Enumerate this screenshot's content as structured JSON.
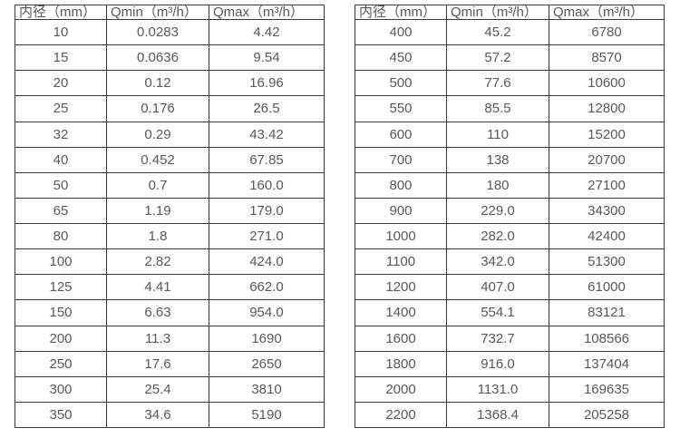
{
  "colors": {
    "background": "#ffffff",
    "table_border": "#3b3b3b",
    "text": "#595959"
  },
  "tables": [
    {
      "id": "diameter-flow-table-left",
      "headers": [
        "内径（mm）",
        "Qmin（m³/h）",
        "Qmax（m³/h）"
      ],
      "rows": [
        [
          "10",
          "0.0283",
          "4.42"
        ],
        [
          "15",
          "0.0636",
          "9.54"
        ],
        [
          "20",
          "0.12",
          "16.96"
        ],
        [
          "25",
          "0.176",
          "26.5"
        ],
        [
          "32",
          "0.29",
          "43.42"
        ],
        [
          "40",
          "0.452",
          "67.85"
        ],
        [
          "50",
          "0.7",
          "160.0"
        ],
        [
          "65",
          "1.19",
          "179.0"
        ],
        [
          "80",
          "1.8",
          "271.0"
        ],
        [
          "100",
          "2.82",
          "424.0"
        ],
        [
          "125",
          "4.41",
          "662.0"
        ],
        [
          "150",
          "6.63",
          "954.0"
        ],
        [
          "200",
          "11.3",
          "1690"
        ],
        [
          "250",
          "17.6",
          "2650"
        ],
        [
          "300",
          "25.4",
          "3810"
        ],
        [
          "350",
          "34.6",
          "5190"
        ]
      ]
    },
    {
      "id": "diameter-flow-table-right",
      "headers": [
        "内径（mm）",
        "Qmin（m³/h）",
        "Qmax（m³/h）"
      ],
      "rows": [
        [
          "400",
          "45.2",
          "6780"
        ],
        [
          "450",
          "57.2",
          "8570"
        ],
        [
          "500",
          "77.6",
          "10600"
        ],
        [
          "550",
          "85.5",
          "12800"
        ],
        [
          "600",
          "110",
          "15200"
        ],
        [
          "700",
          "138",
          "20700"
        ],
        [
          "800",
          "180",
          "27100"
        ],
        [
          "900",
          "229.0",
          "34300"
        ],
        [
          "1000",
          "282.0",
          "42400"
        ],
        [
          "1100",
          "342.0",
          "51300"
        ],
        [
          "1200",
          "407.0",
          "61000"
        ],
        [
          "1400",
          "554.1",
          "83121"
        ],
        [
          "1600",
          "732.7",
          "108566"
        ],
        [
          "1800",
          "916.0",
          "137404"
        ],
        [
          "2000",
          "1131.0",
          "169635"
        ],
        [
          "2200",
          "1368.4",
          "205258"
        ]
      ]
    }
  ]
}
